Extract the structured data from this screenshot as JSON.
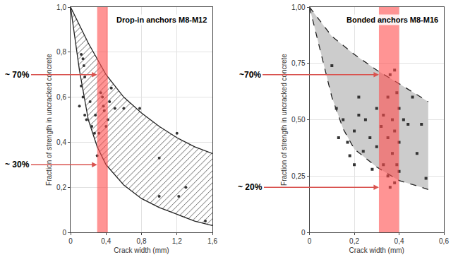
{
  "chart_data": [
    {
      "type": "scatter",
      "title": "Drop-in anchors M8-M12",
      "x_label": "Crack width (mm)",
      "y_label": "Fraction of strength in uncracked concrete",
      "marker": "circle",
      "color": "#333333",
      "grid": true,
      "x": [
        0.12,
        0.14,
        0.15,
        0.16,
        0.12,
        0.14,
        0.1,
        0.16,
        0.18,
        0.22,
        0.24,
        0.27,
        0.3,
        0.34,
        0.36,
        0.37,
        0.38,
        0.4,
        0.42,
        0.46,
        0.44,
        0.5,
        0.6,
        0.78,
        1.0,
        1.0,
        1.2,
        1.22,
        1.3,
        1.52,
        0.32,
        0.28
      ],
      "values": [
        0.79,
        0.77,
        0.74,
        0.69,
        0.65,
        0.6,
        0.56,
        0.52,
        0.5,
        0.58,
        0.47,
        0.44,
        0.34,
        0.62,
        0.6,
        0.56,
        0.54,
        0.47,
        0.5,
        0.64,
        0.58,
        0.55,
        0.55,
        0.55,
        0.33,
        0.16,
        0.44,
        0.16,
        0.2,
        0.05,
        0.44,
        0.52
      ],
      "envelope": {
        "color": "#555555",
        "line_style": "solid",
        "upper": {
          "x": [
            0,
            0.2,
            0.4,
            0.6,
            0.8,
            1.0,
            1.2,
            1.4,
            1.6
          ],
          "values": [
            1.0,
            0.84,
            0.7,
            0.6,
            0.53,
            0.47,
            0.42,
            0.38,
            0.35
          ]
        },
        "lower": {
          "x": [
            0,
            0.1,
            0.2,
            0.3,
            0.4,
            0.6,
            0.8,
            1.0,
            1.2,
            1.4,
            1.6
          ],
          "values": [
            1.0,
            0.72,
            0.5,
            0.38,
            0.3,
            0.21,
            0.15,
            0.11,
            0.08,
            0.05,
            0.03
          ]
        }
      },
      "highlight": {
        "x": [
          0.3,
          0.42
        ],
        "color": "#ff4d4d"
      },
      "annotations": [
        {
          "text": "~ 70%",
          "y": 0.7
        },
        {
          "text": "~ 30%",
          "y": 0.3
        }
      ],
      "xlim": [
        0,
        1.6
      ],
      "xticks": [
        {
          "value": 0,
          "label": "0"
        },
        {
          "value": 0.4,
          "label": "0,4"
        },
        {
          "value": 0.8,
          "label": "0,8"
        },
        {
          "value": 1.2,
          "label": "1,2"
        },
        {
          "value": 1.6,
          "label": "1,6"
        }
      ],
      "ylim": [
        0,
        1.0
      ],
      "yticks": [
        {
          "value": 0,
          "label": "0"
        },
        {
          "value": 0.2,
          "label": "0,2"
        },
        {
          "value": 0.4,
          "label": "0,4"
        },
        {
          "value": 0.6,
          "label": "0,6"
        },
        {
          "value": 0.8,
          "label": "0,8"
        },
        {
          "value": 1.0,
          "label": "1,0"
        }
      ]
    },
    {
      "type": "scatter",
      "title": "Bonded anchors M8-M16",
      "x_label": "Crack width (mm)",
      "y_label": "Fraction of strength in uncracked concrete",
      "marker": "square",
      "color": "#333333",
      "grid": true,
      "x": [
        0.1,
        0.12,
        0.13,
        0.15,
        0.17,
        0.18,
        0.2,
        0.2,
        0.22,
        0.22,
        0.24,
        0.25,
        0.27,
        0.28,
        0.3,
        0.3,
        0.32,
        0.33,
        0.33,
        0.35,
        0.35,
        0.35,
        0.36,
        0.37,
        0.37,
        0.38,
        0.38,
        0.39,
        0.39,
        0.4,
        0.4,
        0.4,
        0.42,
        0.44,
        0.46,
        0.48,
        0.5,
        0.52,
        0.36,
        0.38
      ],
      "values": [
        0.74,
        0.55,
        0.42,
        0.5,
        0.4,
        0.34,
        0.45,
        0.3,
        0.52,
        0.6,
        0.36,
        0.5,
        0.42,
        0.28,
        0.55,
        0.38,
        0.47,
        0.3,
        0.52,
        0.6,
        0.42,
        0.25,
        0.7,
        0.5,
        0.35,
        0.45,
        0.22,
        0.62,
        0.3,
        0.4,
        0.27,
        0.55,
        0.5,
        0.48,
        0.6,
        0.35,
        0.48,
        0.24,
        0.2,
        0.72
      ],
      "envelope": {
        "color": "#cccccc",
        "line_style": "dashed",
        "upper": {
          "x": [
            0,
            0.1,
            0.2,
            0.3,
            0.4,
            0.5,
            0.53
          ],
          "values": [
            1.0,
            0.87,
            0.79,
            0.72,
            0.66,
            0.6,
            0.58
          ]
        },
        "lower": {
          "x": [
            0,
            0.05,
            0.1,
            0.15,
            0.2,
            0.3,
            0.4,
            0.5,
            0.53
          ],
          "values": [
            1.0,
            0.8,
            0.6,
            0.46,
            0.37,
            0.29,
            0.23,
            0.2,
            0.19
          ]
        }
      },
      "highlight": {
        "x": [
          0.31,
          0.4
        ],
        "color": "#ff4d4d"
      },
      "annotations": [
        {
          "text": "~70%",
          "y": 0.7
        },
        {
          "text": "~ 20%",
          "y": 0.2
        }
      ],
      "xlim": [
        0,
        0.6
      ],
      "xticks": [
        {
          "value": 0,
          "label": "0"
        },
        {
          "value": 0.2,
          "label": "0,2"
        },
        {
          "value": 0.4,
          "label": "0,4"
        },
        {
          "value": 0.6,
          "label": "0,6"
        }
      ],
      "ylim": [
        0,
        1.0
      ],
      "yticks": [
        {
          "value": 0,
          "label": "0"
        },
        {
          "value": 0.25,
          "label": "0,25"
        },
        {
          "value": 0.5,
          "label": "0,50"
        },
        {
          "value": 0.75,
          "label": "0,75"
        },
        {
          "value": 1.0,
          "label": "1,00"
        }
      ]
    }
  ]
}
